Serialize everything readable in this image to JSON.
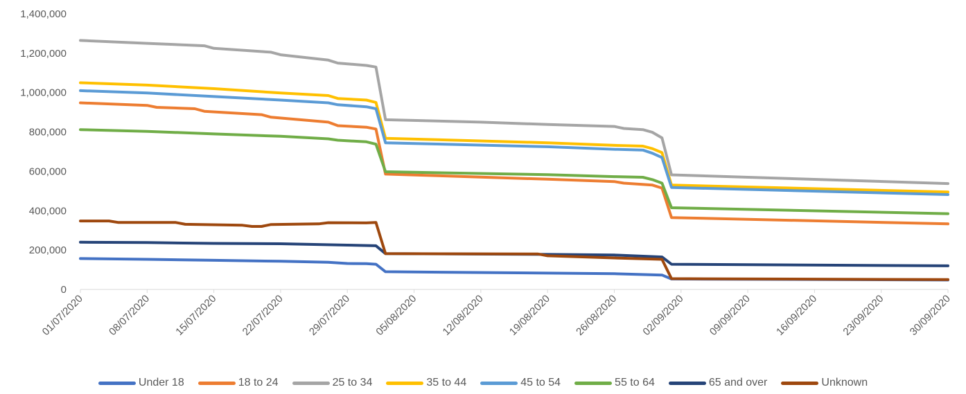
{
  "chart_data": {
    "type": "line",
    "title": "",
    "xlabel": "",
    "ylabel": "",
    "ylim": [
      0,
      1400000
    ],
    "yticks": [
      "0",
      "200,000",
      "400,000",
      "600,000",
      "800,000",
      "1,000,000",
      "1,200,000",
      "1,400,000"
    ],
    "ytick_values": [
      0,
      200000,
      400000,
      600000,
      800000,
      1000000,
      1200000,
      1400000
    ],
    "x_start": "01/07/2020",
    "x_end": "30/09/2020",
    "xticks": [
      "01/07/2020",
      "08/07/2020",
      "15/07/2020",
      "22/07/2020",
      "29/07/2020",
      "05/08/2020",
      "12/08/2020",
      "19/08/2020",
      "26/08/2020",
      "02/09/2020",
      "09/09/2020",
      "16/09/2020",
      "23/09/2020",
      "30/09/2020"
    ],
    "grid": false,
    "legend_position": "bottom",
    "series": [
      {
        "name": "Under 18",
        "color": "#4472C4",
        "points": [
          [
            "01/07/2020",
            157000
          ],
          [
            "08/07/2020",
            153000
          ],
          [
            "15/07/2020",
            148000
          ],
          [
            "22/07/2020",
            143000
          ],
          [
            "27/07/2020",
            138000
          ],
          [
            "29/07/2020",
            132000
          ],
          [
            "31/07/2020",
            131000
          ],
          [
            "01/08/2020",
            128000
          ],
          [
            "02/08/2020",
            90000
          ],
          [
            "19/08/2020",
            83000
          ],
          [
            "26/08/2020",
            80000
          ],
          [
            "31/08/2020",
            73000
          ],
          [
            "01/09/2020",
            53000
          ],
          [
            "30/09/2020",
            48000
          ]
        ]
      },
      {
        "name": "18 to 24",
        "color": "#ED7D31",
        "points": [
          [
            "01/07/2020",
            948000
          ],
          [
            "08/07/2020",
            935000
          ],
          [
            "09/07/2020",
            925000
          ],
          [
            "13/07/2020",
            918000
          ],
          [
            "14/07/2020",
            905000
          ],
          [
            "20/07/2020",
            888000
          ],
          [
            "21/07/2020",
            875000
          ],
          [
            "27/07/2020",
            850000
          ],
          [
            "28/07/2020",
            832000
          ],
          [
            "31/07/2020",
            824000
          ],
          [
            "01/08/2020",
            815000
          ],
          [
            "02/08/2020",
            586000
          ],
          [
            "19/08/2020",
            560000
          ],
          [
            "26/08/2020",
            548000
          ],
          [
            "27/08/2020",
            540000
          ],
          [
            "30/08/2020",
            530000
          ],
          [
            "31/08/2020",
            515000
          ],
          [
            "01/09/2020",
            365000
          ],
          [
            "30/09/2020",
            333000
          ]
        ]
      },
      {
        "name": "25 to 34",
        "color": "#A5A5A5",
        "points": [
          [
            "01/07/2020",
            1265000
          ],
          [
            "08/07/2020",
            1250000
          ],
          [
            "14/07/2020",
            1238000
          ],
          [
            "15/07/2020",
            1225000
          ],
          [
            "21/07/2020",
            1205000
          ],
          [
            "22/07/2020",
            1192000
          ],
          [
            "27/07/2020",
            1165000
          ],
          [
            "28/07/2020",
            1150000
          ],
          [
            "31/07/2020",
            1138000
          ],
          [
            "01/08/2020",
            1130000
          ],
          [
            "02/08/2020",
            862000
          ],
          [
            "12/08/2020",
            850000
          ],
          [
            "19/08/2020",
            838000
          ],
          [
            "26/08/2020",
            828000
          ],
          [
            "27/08/2020",
            818000
          ],
          [
            "29/08/2020",
            812000
          ],
          [
            "30/08/2020",
            798000
          ],
          [
            "31/08/2020",
            770000
          ],
          [
            "01/09/2020",
            582000
          ],
          [
            "30/09/2020",
            538000
          ]
        ]
      },
      {
        "name": "35 to 44",
        "color": "#FFC000",
        "points": [
          [
            "01/07/2020",
            1050000
          ],
          [
            "08/07/2020",
            1038000
          ],
          [
            "15/07/2020",
            1020000
          ],
          [
            "22/07/2020",
            998000
          ],
          [
            "27/07/2020",
            985000
          ],
          [
            "28/07/2020",
            970000
          ],
          [
            "31/07/2020",
            962000
          ],
          [
            "01/08/2020",
            950000
          ],
          [
            "02/08/2020",
            768000
          ],
          [
            "19/08/2020",
            745000
          ],
          [
            "26/08/2020",
            732000
          ],
          [
            "29/08/2020",
            728000
          ],
          [
            "30/08/2020",
            715000
          ],
          [
            "31/08/2020",
            695000
          ],
          [
            "01/09/2020",
            530000
          ],
          [
            "30/09/2020",
            495000
          ]
        ]
      },
      {
        "name": "45 to 54",
        "color": "#5B9BD5",
        "points": [
          [
            "01/07/2020",
            1010000
          ],
          [
            "08/07/2020",
            998000
          ],
          [
            "15/07/2020",
            980000
          ],
          [
            "22/07/2020",
            962000
          ],
          [
            "27/07/2020",
            948000
          ],
          [
            "28/07/2020",
            938000
          ],
          [
            "31/07/2020",
            928000
          ],
          [
            "01/08/2020",
            918000
          ],
          [
            "02/08/2020",
            745000
          ],
          [
            "19/08/2020",
            725000
          ],
          [
            "26/08/2020",
            712000
          ],
          [
            "29/08/2020",
            708000
          ],
          [
            "30/08/2020",
            692000
          ],
          [
            "31/08/2020",
            670000
          ],
          [
            "01/09/2020",
            518000
          ],
          [
            "30/09/2020",
            482000
          ]
        ]
      },
      {
        "name": "55 to 64",
        "color": "#70AD47",
        "points": [
          [
            "01/07/2020",
            812000
          ],
          [
            "08/07/2020",
            803000
          ],
          [
            "15/07/2020",
            790000
          ],
          [
            "22/07/2020",
            778000
          ],
          [
            "27/07/2020",
            765000
          ],
          [
            "28/07/2020",
            758000
          ],
          [
            "31/07/2020",
            750000
          ],
          [
            "01/08/2020",
            738000
          ],
          [
            "02/08/2020",
            598000
          ],
          [
            "19/08/2020",
            583000
          ],
          [
            "26/08/2020",
            573000
          ],
          [
            "29/08/2020",
            570000
          ],
          [
            "30/08/2020",
            558000
          ],
          [
            "31/08/2020",
            540000
          ],
          [
            "01/09/2020",
            415000
          ],
          [
            "30/09/2020",
            385000
          ]
        ]
      },
      {
        "name": "65 and over",
        "color": "#264478",
        "points": [
          [
            "01/07/2020",
            240000
          ],
          [
            "08/07/2020",
            238000
          ],
          [
            "15/07/2020",
            234000
          ],
          [
            "22/07/2020",
            232000
          ],
          [
            "29/07/2020",
            225000
          ],
          [
            "01/08/2020",
            222000
          ],
          [
            "02/08/2020",
            182000
          ],
          [
            "19/08/2020",
            178000
          ],
          [
            "26/08/2020",
            175000
          ],
          [
            "31/08/2020",
            165000
          ],
          [
            "01/09/2020",
            128000
          ],
          [
            "30/09/2020",
            120000
          ]
        ]
      },
      {
        "name": "Unknown",
        "color": "#9E480E",
        "points": [
          [
            "01/07/2020",
            348000
          ],
          [
            "04/07/2020",
            348000
          ],
          [
            "05/07/2020",
            340000
          ],
          [
            "11/07/2020",
            340000
          ],
          [
            "12/07/2020",
            331000
          ],
          [
            "18/07/2020",
            326000
          ],
          [
            "19/07/2020",
            320000
          ],
          [
            "20/07/2020",
            320000
          ],
          [
            "21/07/2020",
            330000
          ],
          [
            "26/07/2020",
            333000
          ],
          [
            "27/07/2020",
            339000
          ],
          [
            "31/07/2020",
            338000
          ],
          [
            "01/08/2020",
            340000
          ],
          [
            "02/08/2020",
            182000
          ],
          [
            "18/08/2020",
            180000
          ],
          [
            "19/08/2020",
            171000
          ],
          [
            "26/08/2020",
            160000
          ],
          [
            "31/08/2020",
            153000
          ],
          [
            "01/09/2020",
            55000
          ],
          [
            "30/09/2020",
            50000
          ]
        ]
      }
    ]
  }
}
